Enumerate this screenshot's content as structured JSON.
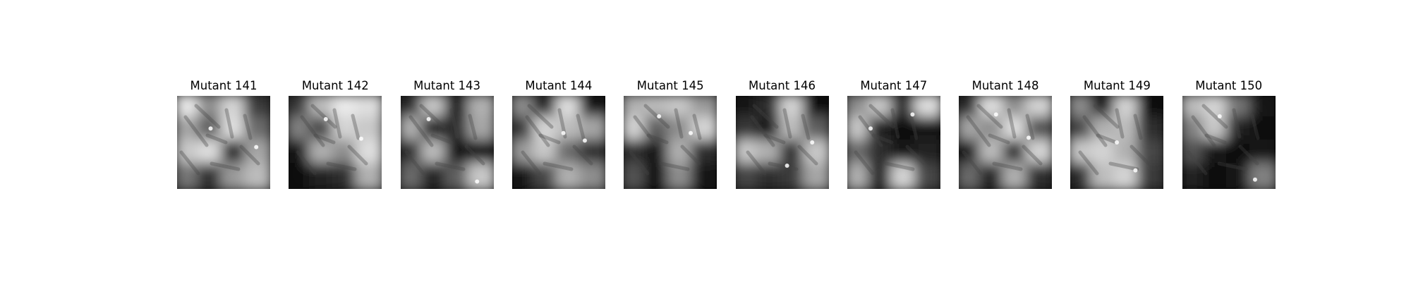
{
  "figure": {
    "panels": [
      {
        "title": "Mutant 141",
        "mask": [
          [
            1.0,
            0.6,
            0.9,
            0.25
          ],
          [
            0.7,
            0.4,
            0.95,
            0.45
          ],
          [
            0.85,
            0.95,
            0.15,
            0.7
          ],
          [
            0.5,
            0.2,
            0.65,
            0.8
          ]
        ],
        "glints": [
          [
            0.36,
            0.35
          ],
          [
            0.85,
            0.55
          ]
        ]
      },
      {
        "title": "Mutant 142",
        "mask": [
          [
            0.25,
            0.8,
            1.0,
            0.95
          ],
          [
            0.55,
            0.3,
            0.9,
            0.85
          ],
          [
            0.1,
            0.75,
            0.6,
            0.95
          ],
          [
            0.05,
            0.15,
            0.2,
            0.75
          ]
        ],
        "glints": [
          [
            0.4,
            0.25
          ],
          [
            0.78,
            0.46
          ]
        ]
      },
      {
        "title": "Mutant 143",
        "mask": [
          [
            0.2,
            0.85,
            0.1,
            0.75
          ],
          [
            0.75,
            0.15,
            0.2,
            0.7
          ],
          [
            0.2,
            0.8,
            0.1,
            0.05
          ],
          [
            0.45,
            0.15,
            0.4,
            0.85
          ]
        ],
        "glints": [
          [
            0.3,
            0.25
          ],
          [
            0.82,
            0.92
          ]
        ]
      },
      {
        "title": "Mutant 144",
        "mask": [
          [
            0.6,
            0.15,
            0.95,
            0.1
          ],
          [
            0.25,
            0.9,
            0.8,
            0.7
          ],
          [
            0.65,
            0.85,
            0.45,
            0.2
          ],
          [
            0.1,
            0.3,
            0.75,
            0.6
          ]
        ],
        "glints": [
          [
            0.55,
            0.4
          ],
          [
            0.78,
            0.48
          ]
        ]
      },
      {
        "title": "Mutant 145",
        "mask": [
          [
            0.75,
            0.8,
            0.85,
            0.65
          ],
          [
            0.9,
            0.4,
            0.6,
            0.9
          ],
          [
            0.2,
            0.1,
            0.75,
            0.2
          ],
          [
            0.35,
            0.05,
            0.6,
            0.1
          ]
        ],
        "glints": [
          [
            0.38,
            0.22
          ],
          [
            0.72,
            0.4
          ]
        ]
      },
      {
        "title": "Mutant 146",
        "mask": [
          [
            0.1,
            0.2,
            0.9,
            0.05
          ],
          [
            0.25,
            0.1,
            0.8,
            0.4
          ],
          [
            0.85,
            0.75,
            0.2,
            0.85
          ],
          [
            0.3,
            0.2,
            0.25,
            0.7
          ]
        ],
        "glints": [
          [
            0.55,
            0.75
          ],
          [
            0.82,
            0.5
          ]
        ]
      },
      {
        "title": "Mutant 147",
        "mask": [
          [
            0.6,
            0.85,
            0.2,
            0.95
          ],
          [
            0.85,
            0.15,
            0.05,
            0.1
          ],
          [
            0.45,
            0.2,
            0.1,
            0.15
          ],
          [
            0.75,
            0.15,
            0.9,
            0.3
          ]
        ],
        "glints": [
          [
            0.25,
            0.35
          ],
          [
            0.7,
            0.2
          ]
        ]
      },
      {
        "title": "Mutant 148",
        "mask": [
          [
            0.2,
            0.95,
            0.6,
            0.9
          ],
          [
            0.7,
            0.6,
            0.95,
            0.35
          ],
          [
            0.1,
            0.8,
            0.2,
            0.9
          ],
          [
            0.45,
            0.15,
            0.75,
            0.2
          ]
        ],
        "glints": [
          [
            0.4,
            0.2
          ],
          [
            0.75,
            0.45
          ]
        ]
      },
      {
        "title": "Mutant 149",
        "mask": [
          [
            0.6,
            0.1,
            0.9,
            0.05
          ],
          [
            0.3,
            0.75,
            0.8,
            0.2
          ],
          [
            0.85,
            0.9,
            0.75,
            0.3
          ],
          [
            0.2,
            0.8,
            0.9,
            0.25
          ]
        ],
        "glints": [
          [
            0.5,
            0.5
          ],
          [
            0.7,
            0.8
          ]
        ]
      },
      {
        "title": "Mutant 150",
        "mask": [
          [
            0.8,
            0.9,
            0.5,
            0.1
          ],
          [
            0.55,
            0.85,
            0.15,
            0.05
          ],
          [
            0.35,
            0.1,
            0.05,
            0.1
          ],
          [
            0.15,
            0.05,
            0.1,
            0.55
          ]
        ],
        "glints": [
          [
            0.4,
            0.22
          ],
          [
            0.78,
            0.9
          ]
        ]
      }
    ]
  }
}
